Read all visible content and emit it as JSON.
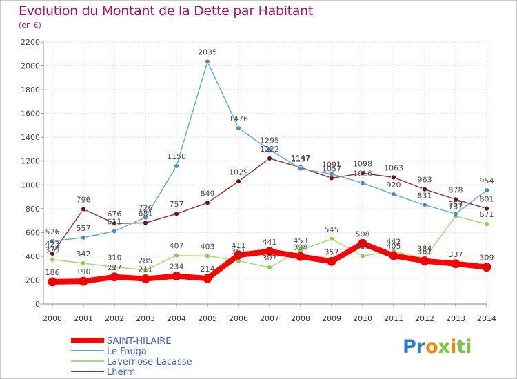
{
  "chart_data": {
    "type": "line",
    "title": "Evolution du Montant de la Dette par Habitant",
    "subtitle": "(en €)",
    "x": [
      "2000",
      "2001",
      "2002",
      "2003",
      "2004",
      "2005",
      "2006",
      "2007",
      "2008",
      "2009",
      "2010",
      "2011",
      "2012",
      "2013",
      "2014"
    ],
    "ylim": [
      0,
      2200
    ],
    "yticks": [
      0,
      200,
      400,
      600,
      800,
      1000,
      1200,
      1400,
      1600,
      1800,
      2000,
      2200
    ],
    "grid": true,
    "legend_position": "bottom-left",
    "series": [
      {
        "name": "SAINT-HILAIRE",
        "color": "#ff0000",
        "marker": "#ee0000",
        "values": [
          186,
          190,
          227,
          211,
          234,
          214,
          411,
          441,
          398,
          357,
          508,
          405,
          361,
          337,
          309
        ],
        "labels": [
          "186",
          "190",
          "227",
          "211",
          "234",
          "214",
          "411",
          "441",
          "398",
          "357",
          "508",
          "405",
          "361",
          "337",
          "309"
        ]
      },
      {
        "name": "Le Fauga",
        "color": "#6aaad6",
        "marker": "#4a8ec8",
        "values": [
          526,
          557,
          611,
          726,
          1158,
          2035,
          1476,
          1295,
          1137,
          1091,
          1016,
          920,
          831,
          757,
          954
        ],
        "labels": [
          "526",
          "557",
          "611",
          "726",
          "1158",
          "2035",
          "1476",
          "1295",
          "1137",
          "1091",
          "1016",
          "920",
          "831",
          "757",
          "954"
        ]
      },
      {
        "name": "Lavernose-Lacasse",
        "color": "#a6dc78",
        "marker": "#84d04a",
        "values": [
          373,
          342,
          310,
          285,
          407,
          403,
          361,
          307,
          453,
          545,
          403,
          442,
          384,
          737,
          671
        ],
        "labels": [
          "373",
          "342",
          "310",
          "285",
          "407",
          "403",
          "361",
          "307",
          "453",
          "545",
          "403",
          "442",
          "384",
          "737",
          "671"
        ]
      },
      {
        "name": "Lherm",
        "color": "#8a3a3a",
        "marker": "#6a1414",
        "values": [
          423,
          796,
          676,
          681,
          757,
          849,
          1029,
          1222,
          1147,
          1057,
          1098,
          1063,
          963,
          878,
          801
        ],
        "labels": [
          "423",
          "796",
          "676",
          "681",
          "757",
          "849",
          "1029",
          "1222",
          "1147",
          "1057",
          "1098",
          "1063",
          "963",
          "878",
          "801"
        ]
      }
    ]
  },
  "legend": {
    "items": [
      "SAINT-HILAIRE",
      "Le Fauga",
      "Lavernose-Lacasse",
      "Lherm"
    ],
    "text_color": "#4060c0"
  },
  "logo": {
    "text": "Proxiti",
    "colors": [
      "#2e7bc4",
      "#f08a00",
      "#7cc242"
    ]
  }
}
